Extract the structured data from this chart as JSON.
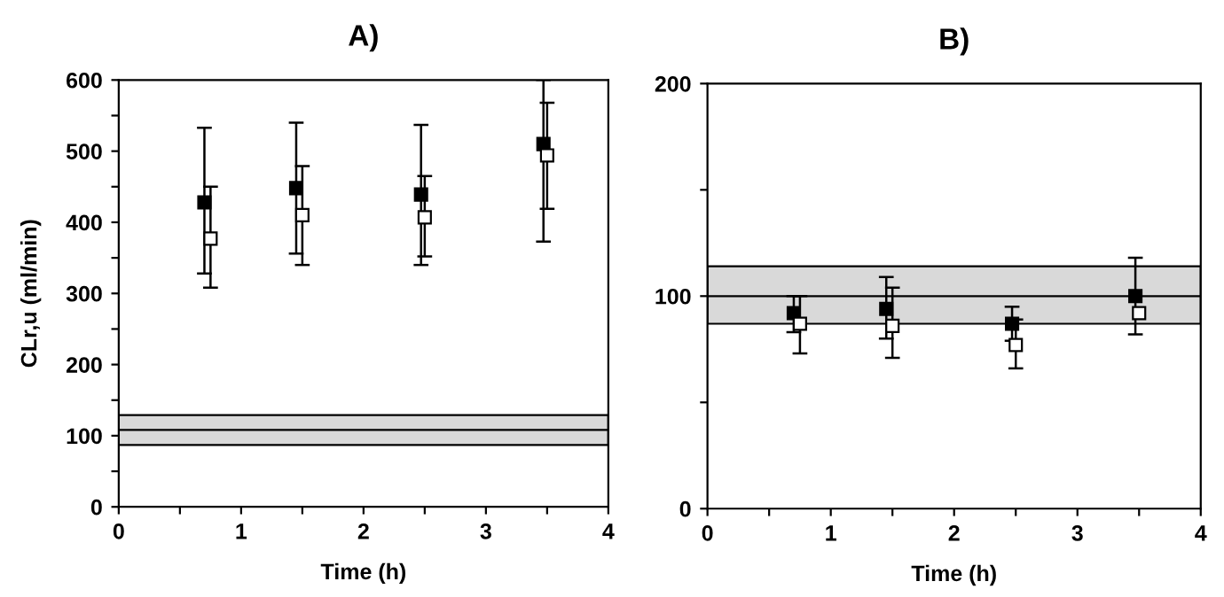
{
  "chart_data": [
    {
      "type": "scatter",
      "title": "A)",
      "xlabel": "Time (h)",
      "ylabel": "CLr,u (ml/min)",
      "xlim": [
        0,
        4
      ],
      "ylim": [
        0,
        600
      ],
      "xticks": [
        0,
        {
          "value": 0.5,
          "label": null
        },
        1,
        {
          "value": 1.5,
          "label": null
        },
        2,
        {
          "value": 2.5,
          "label": null
        },
        3,
        {
          "value": 3.5,
          "label": null
        },
        4
      ],
      "yticks": [
        0,
        {
          "value": 50,
          "label": null
        },
        100,
        {
          "value": 150,
          "label": null
        },
        200,
        {
          "value": 250,
          "label": null
        },
        300,
        {
          "value": 350,
          "label": null
        },
        400,
        {
          "value": 450,
          "label": null
        },
        500,
        {
          "value": 550,
          "label": null
        },
        600
      ],
      "grid": false,
      "legend": false,
      "marker": "square",
      "series": [
        {
          "color": "#000000",
          "x": [
            0.7,
            1.45,
            2.47,
            3.47
          ],
          "values": [
            428,
            448,
            439,
            510
          ],
          "errors": [
            [
              328,
              533
            ],
            [
              356,
              540
            ],
            [
              340,
              537
            ],
            [
              373,
              600
            ]
          ]
        },
        {
          "color": "#ffffff",
          "x": [
            0.75,
            1.5,
            2.5,
            3.5
          ],
          "values": [
            377,
            410,
            407,
            494
          ],
          "errors": [
            [
              308,
              450
            ],
            [
              340,
              479
            ],
            [
              352,
              465
            ],
            [
              419,
              568
            ]
          ]
        }
      ],
      "bands": [
        {
          "axis": "y",
          "from": 87,
          "to": 129,
          "color": "#d9d9d9"
        }
      ],
      "ref_lines": [
        {
          "axis": "y",
          "value": 108,
          "color": "#000000",
          "line_style": "solid"
        }
      ]
    },
    {
      "type": "scatter",
      "title": "B)",
      "xlabel": "Time (h)",
      "xlim": [
        0,
        4
      ],
      "ylim": [
        0,
        200
      ],
      "xticks": [
        0,
        {
          "value": 0.5,
          "label": null
        },
        1,
        {
          "value": 1.5,
          "label": null
        },
        2,
        {
          "value": 2.5,
          "label": null
        },
        3,
        {
          "value": 3.5,
          "label": null
        },
        4
      ],
      "yticks": [
        0,
        {
          "value": 50,
          "label": null
        },
        100,
        {
          "value": 150,
          "label": null
        },
        200
      ],
      "grid": false,
      "legend": false,
      "marker": "square",
      "series": [
        {
          "color": "#000000",
          "x": [
            0.7,
            1.45,
            2.47,
            3.47
          ],
          "values": [
            92,
            94,
            87,
            100
          ],
          "errors": [
            [
              83,
              100
            ],
            [
              80,
              109
            ],
            [
              79,
              95
            ],
            [
              82,
              118
            ]
          ]
        },
        {
          "color": "#ffffff",
          "x": [
            0.75,
            1.5,
            2.5,
            3.5
          ],
          "values": [
            87,
            86,
            77,
            92
          ],
          "errors": [
            [
              73,
              100
            ],
            [
              71,
              104
            ],
            [
              66,
              89
            ],
            null
          ]
        }
      ],
      "bands": [
        {
          "axis": "y",
          "from": 87,
          "to": 114,
          "color": "#d9d9d9"
        }
      ],
      "ref_lines": [
        {
          "axis": "y",
          "value": 100,
          "color": "#000000",
          "line_style": "solid"
        }
      ]
    }
  ]
}
